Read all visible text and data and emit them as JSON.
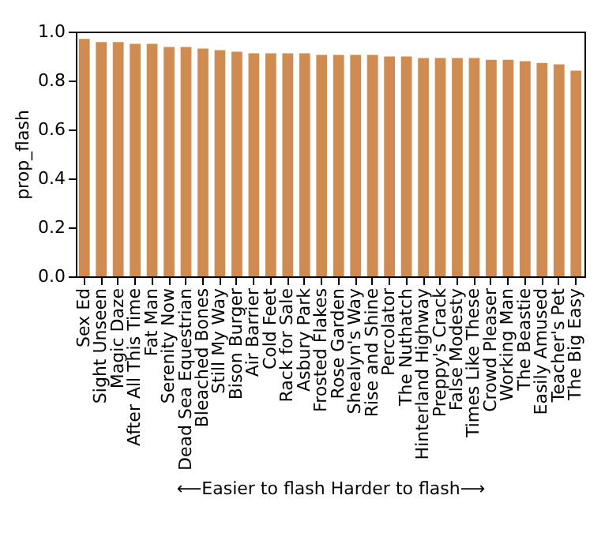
{
  "chart_data": {
    "type": "bar",
    "xlabel": "⟵Easier to flash     Harder to flash⟶",
    "ylabel": "prop_flash",
    "categories": [
      "Sex Ed",
      "Sight Unseen",
      "Magic Daze",
      "After All This Time",
      "Fat Man",
      "Serenity Now",
      "Dead Sea Equestrian",
      "Bleached Bones",
      "Still My Way",
      "Bison Burger",
      "Air Barrier",
      "Cold Feet",
      "Rack for Sale",
      "Asbury Park",
      "Frosted Flakes",
      "Rose Garden",
      "Shealyn's Way",
      "Rise and Shine",
      "Percolator",
      "The Nuthatch",
      "Hinterland Highway",
      "Preppy's Crack",
      "False Modesty",
      "Times Like These",
      "Crowd Pleaser",
      "Working Man",
      "The Beastie",
      "Easily Amused",
      "Teacher's Pet",
      "The Big Easy"
    ],
    "values": [
      0.97,
      0.957,
      0.957,
      0.95,
      0.95,
      0.937,
      0.937,
      0.931,
      0.924,
      0.918,
      0.911,
      0.911,
      0.911,
      0.911,
      0.905,
      0.905,
      0.905,
      0.905,
      0.898,
      0.898,
      0.892,
      0.892,
      0.892,
      0.892,
      0.885,
      0.885,
      0.879,
      0.872,
      0.866,
      0.84
    ],
    "color": "#d08c50",
    "ylim": [
      0,
      1
    ],
    "yticks": [
      {
        "value": 0,
        "label": "0.0"
      },
      {
        "value": 0.2,
        "label": "0.2"
      },
      {
        "value": 0.4,
        "label": "0.4"
      },
      {
        "value": 0.6,
        "label": "0.6"
      },
      {
        "value": 0.8,
        "label": "0.8"
      },
      {
        "value": 1,
        "label": "1.0"
      }
    ],
    "grid": false
  }
}
